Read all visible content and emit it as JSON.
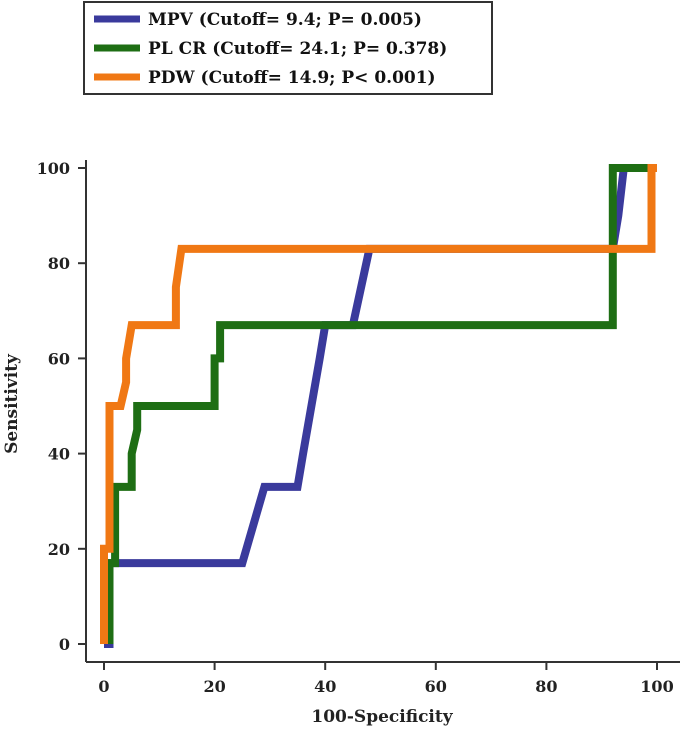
{
  "chart_data": {
    "type": "line",
    "xlabel": "100-Specificity",
    "ylabel": "Sensitivity",
    "xlim": [
      0,
      100
    ],
    "ylim": [
      0,
      100
    ],
    "xticks": [
      0,
      20,
      40,
      60,
      80,
      100
    ],
    "yticks": [
      0,
      20,
      40,
      60,
      80,
      100
    ],
    "legend_position": "top-left",
    "series": [
      {
        "name": "MPV (Cutoff= 9.4; P= 0.005)",
        "color": "#3a3a9c",
        "x": [
          0,
          1,
          1,
          25,
          29,
          35,
          36,
          39,
          40,
          45,
          48,
          92,
          93,
          94,
          100
        ],
        "y": [
          0,
          0,
          17,
          17,
          33,
          33,
          40,
          60,
          67,
          67,
          83,
          83,
          90,
          100,
          100
        ]
      },
      {
        "name": "PL CR (Cutoff= 24.1; P= 0.378)",
        "color": "#1e6e14",
        "x": [
          1,
          1,
          2,
          2,
          5,
          5,
          6,
          6,
          20,
          20,
          21,
          21,
          92,
          92,
          100
        ],
        "y": [
          0,
          17,
          17,
          33,
          33,
          40,
          45,
          50,
          50,
          60,
          60,
          67,
          67,
          100,
          100
        ]
      },
      {
        "name": "PDW (Cutoff= 14.9; P< 0.001)",
        "color": "#f07814",
        "x": [
          0,
          0,
          1,
          1,
          3,
          4,
          4,
          5,
          13,
          13,
          14,
          14,
          99,
          99,
          100
        ],
        "y": [
          0,
          20,
          20,
          50,
          50,
          55,
          60,
          67,
          67,
          75,
          83,
          83,
          83,
          100,
          100
        ]
      }
    ]
  }
}
